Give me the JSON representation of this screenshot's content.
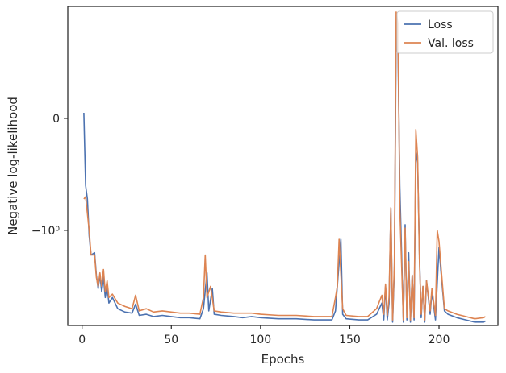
{
  "chart_data": {
    "type": "line",
    "title": "",
    "xlabel": "Epochs",
    "ylabel": "Negative log-likelihood",
    "xlim": [
      -8,
      233
    ],
    "ylim": [
      -1.85,
      1.0
    ],
    "yscale": "symlog",
    "grid": false,
    "legend_position": "top-right",
    "x_ticks": [
      0,
      50,
      100,
      150,
      200
    ],
    "y_ticks": [
      {
        "value": 0,
        "label": "0"
      },
      {
        "value": -1,
        "label": "−10⁰"
      }
    ],
    "series": [
      {
        "name": "Loss",
        "color": "#4c72b0",
        "points": [
          [
            1,
            0.05
          ],
          [
            2,
            -0.6
          ],
          [
            3,
            -0.72
          ],
          [
            4,
            -1.05
          ],
          [
            5,
            -1.22
          ],
          [
            7,
            -1.2
          ],
          [
            8,
            -1.4
          ],
          [
            9,
            -1.52
          ],
          [
            10,
            -1.4
          ],
          [
            11,
            -1.55
          ],
          [
            12,
            -1.42
          ],
          [
            13,
            -1.6
          ],
          [
            14,
            -1.5
          ],
          [
            15,
            -1.65
          ],
          [
            17,
            -1.6
          ],
          [
            20,
            -1.7
          ],
          [
            24,
            -1.73
          ],
          [
            28,
            -1.74
          ],
          [
            30,
            -1.66
          ],
          [
            32,
            -1.76
          ],
          [
            36,
            -1.75
          ],
          [
            40,
            -1.77
          ],
          [
            45,
            -1.76
          ],
          [
            50,
            -1.77
          ],
          [
            55,
            -1.78
          ],
          [
            60,
            -1.78
          ],
          [
            66,
            -1.79
          ],
          [
            68,
            -1.7
          ],
          [
            70,
            -1.38
          ],
          [
            71,
            -1.72
          ],
          [
            73,
            -1.52
          ],
          [
            74,
            -1.75
          ],
          [
            78,
            -1.76
          ],
          [
            85,
            -1.77
          ],
          [
            90,
            -1.78
          ],
          [
            95,
            -1.77
          ],
          [
            100,
            -1.78
          ],
          [
            110,
            -1.79
          ],
          [
            120,
            -1.79
          ],
          [
            130,
            -1.8
          ],
          [
            140,
            -1.8
          ],
          [
            142,
            -1.72
          ],
          [
            145,
            -1.08
          ],
          [
            146,
            -1.75
          ],
          [
            148,
            -1.79
          ],
          [
            155,
            -1.8
          ],
          [
            160,
            -1.8
          ],
          [
            165,
            -1.75
          ],
          [
            168,
            -1.65
          ],
          [
            169,
            -1.8
          ],
          [
            170,
            -1.5
          ],
          [
            171,
            -1.8
          ],
          [
            172,
            -1.65
          ],
          [
            173,
            -0.8
          ],
          [
            174,
            -1.82
          ],
          [
            175,
            -1.35
          ],
          [
            176,
            0.75
          ],
          [
            177,
            0.65
          ],
          [
            178,
            -0.6
          ],
          [
            179,
            -1.2
          ],
          [
            180,
            -1.82
          ],
          [
            181,
            -0.95
          ],
          [
            182,
            -1.8
          ],
          [
            183,
            -1.2
          ],
          [
            184,
            -1.82
          ],
          [
            185,
            -1.4
          ],
          [
            186,
            -1.8
          ],
          [
            187,
            -0.3
          ],
          [
            188,
            -0.4
          ],
          [
            189,
            -1.2
          ],
          [
            190,
            -1.78
          ],
          [
            191,
            -1.5
          ],
          [
            192,
            -1.82
          ],
          [
            193,
            -1.45
          ],
          [
            195,
            -1.75
          ],
          [
            196,
            -1.55
          ],
          [
            198,
            -1.8
          ],
          [
            200,
            -1.15
          ],
          [
            201,
            -1.35
          ],
          [
            203,
            -1.72
          ],
          [
            205,
            -1.75
          ],
          [
            210,
            -1.78
          ],
          [
            215,
            -1.8
          ],
          [
            220,
            -1.82
          ],
          [
            225,
            -1.82
          ],
          [
            226,
            -1.81
          ]
        ]
      },
      {
        "name": "Val. loss",
        "color": "#dd8452",
        "points": [
          [
            1,
            -0.72
          ],
          [
            2,
            -0.7
          ],
          [
            3,
            -0.85
          ],
          [
            4,
            -1.0
          ],
          [
            5,
            -1.22
          ],
          [
            7,
            -1.22
          ],
          [
            8,
            -1.42
          ],
          [
            9,
            -1.5
          ],
          [
            10,
            -1.38
          ],
          [
            11,
            -1.5
          ],
          [
            12,
            -1.35
          ],
          [
            13,
            -1.55
          ],
          [
            14,
            -1.45
          ],
          [
            15,
            -1.6
          ],
          [
            17,
            -1.57
          ],
          [
            20,
            -1.65
          ],
          [
            24,
            -1.68
          ],
          [
            28,
            -1.7
          ],
          [
            30,
            -1.58
          ],
          [
            32,
            -1.72
          ],
          [
            36,
            -1.7
          ],
          [
            40,
            -1.73
          ],
          [
            45,
            -1.72
          ],
          [
            50,
            -1.73
          ],
          [
            55,
            -1.74
          ],
          [
            60,
            -1.74
          ],
          [
            66,
            -1.75
          ],
          [
            68,
            -1.6
          ],
          [
            69,
            -1.22
          ],
          [
            70,
            -1.6
          ],
          [
            72,
            -1.5
          ],
          [
            74,
            -1.72
          ],
          [
            78,
            -1.73
          ],
          [
            85,
            -1.74
          ],
          [
            90,
            -1.74
          ],
          [
            95,
            -1.74
          ],
          [
            100,
            -1.75
          ],
          [
            110,
            -1.76
          ],
          [
            120,
            -1.76
          ],
          [
            130,
            -1.77
          ],
          [
            140,
            -1.77
          ],
          [
            142,
            -1.6
          ],
          [
            143,
            -1.5
          ],
          [
            144,
            -1.08
          ],
          [
            146,
            -1.7
          ],
          [
            148,
            -1.76
          ],
          [
            155,
            -1.77
          ],
          [
            160,
            -1.77
          ],
          [
            165,
            -1.7
          ],
          [
            168,
            -1.58
          ],
          [
            169,
            -1.75
          ],
          [
            170,
            -1.48
          ],
          [
            171,
            -1.76
          ],
          [
            172,
            -1.6
          ],
          [
            173,
            -0.8
          ],
          [
            174,
            -1.8
          ],
          [
            175,
            -1.3
          ],
          [
            176,
            0.95
          ],
          [
            177,
            0.85
          ],
          [
            178,
            -0.8
          ],
          [
            179,
            -1.3
          ],
          [
            180,
            -1.8
          ],
          [
            181,
            -0.98
          ],
          [
            182,
            -1.78
          ],
          [
            183,
            -1.28
          ],
          [
            184,
            -1.8
          ],
          [
            185,
            -1.4
          ],
          [
            186,
            -1.78
          ],
          [
            187,
            -0.1
          ],
          [
            188,
            -0.35
          ],
          [
            189,
            -1.25
          ],
          [
            190,
            -1.75
          ],
          [
            191,
            -1.5
          ],
          [
            192,
            -1.8
          ],
          [
            193,
            -1.45
          ],
          [
            195,
            -1.72
          ],
          [
            196,
            -1.52
          ],
          [
            198,
            -1.76
          ],
          [
            199,
            -1.0
          ],
          [
            200,
            -1.1
          ],
          [
            201,
            -1.3
          ],
          [
            203,
            -1.7
          ],
          [
            205,
            -1.72
          ],
          [
            210,
            -1.75
          ],
          [
            215,
            -1.77
          ],
          [
            220,
            -1.79
          ],
          [
            225,
            -1.78
          ],
          [
            226,
            -1.77
          ]
        ]
      }
    ]
  }
}
